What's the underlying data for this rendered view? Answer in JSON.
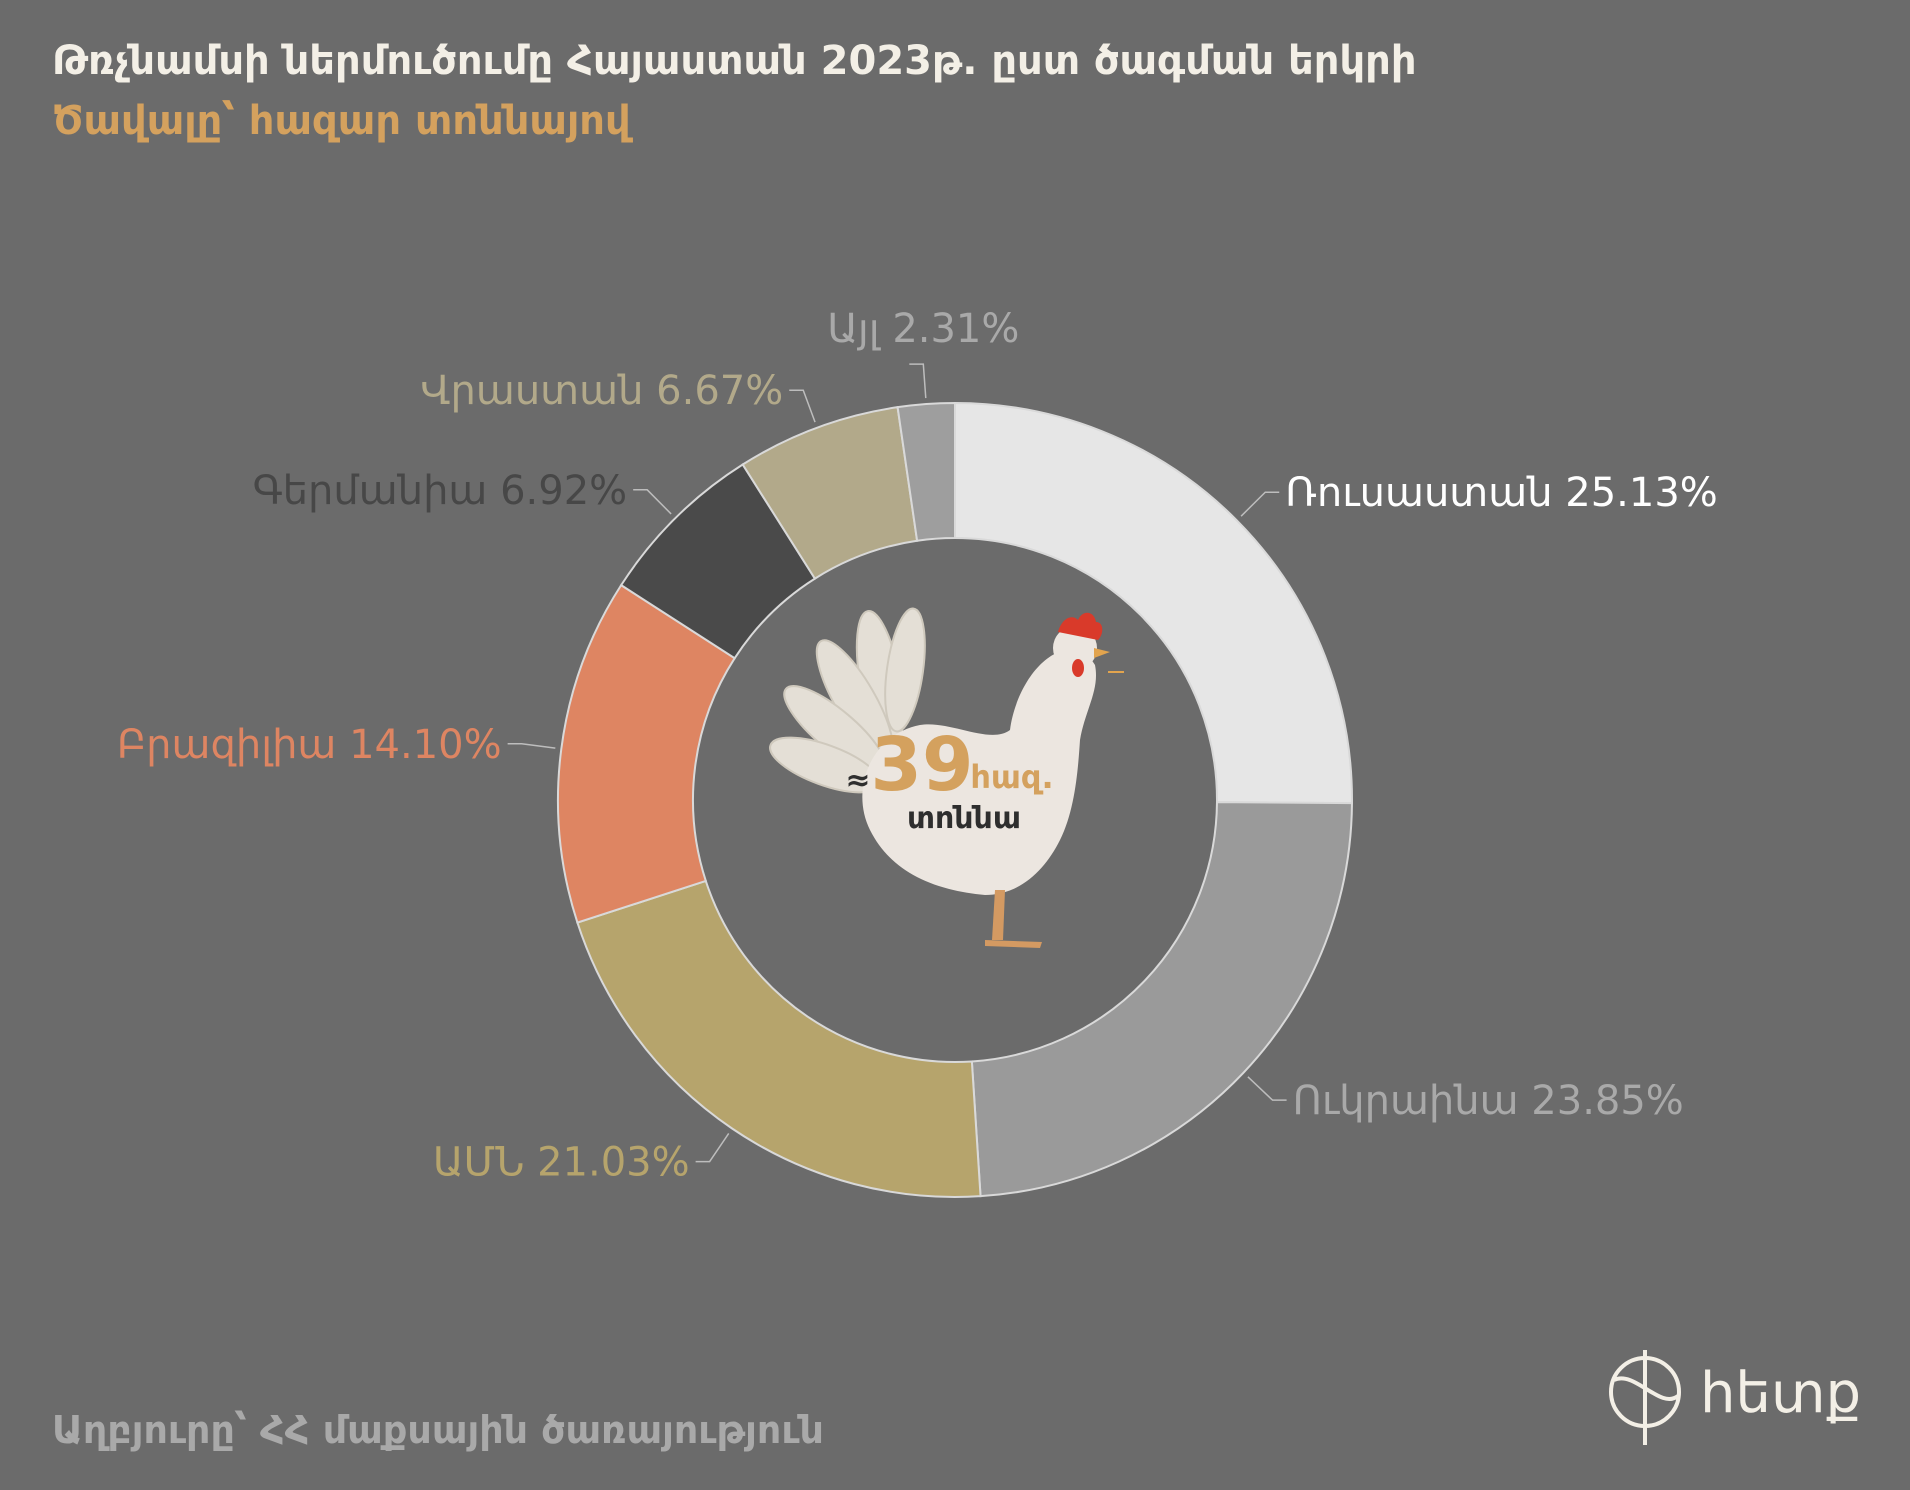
{
  "header": {
    "title": "Թռչնամսի ներմուծումը Հայաստան 2023թ. ըստ ծագման երկրի",
    "subtitle": "Ծավալը՝ հազար տոննայով"
  },
  "center": {
    "approx": "≈",
    "value": "39",
    "unit": "հազ.",
    "unit2": "տոննա"
  },
  "source": "Աղբյուրը՝  ՀՀ մաքսային ծառայություն",
  "logo": {
    "text": "hետք"
  },
  "colors": {
    "background": "#6b6b6b",
    "title": "#f3efe6",
    "subtitle": "#d4a15e",
    "center_value": "#d4a15e"
  },
  "chart_data": {
    "type": "pie",
    "donut": true,
    "categories": [
      "Ռուսաստան",
      "Ուկրաինա",
      "ԱՄՆ",
      "Բրազիլիա",
      "Գերմանիա",
      "Վրաստան",
      "Այլ"
    ],
    "values": [
      25.13,
      23.85,
      21.03,
      14.1,
      6.92,
      6.67,
      2.31
    ],
    "labels": [
      "Ռուսաստան 25.13%",
      "Ուկրաինա 23.85%",
      "ԱՄՆ 21.03%",
      "Բրազիլիա 14.10%",
      "Գերմանիա 6.92%",
      "Վրաստան 6.67%",
      "Այլ 2.31%"
    ],
    "colors": [
      "#e6e6e6",
      "#9a9a9a",
      "#b6a46c",
      "#de8562",
      "#4a4a4a",
      "#b2a98a",
      "#9e9e9e"
    ],
    "label_colors": [
      "#ffffff",
      "#a9a9a9",
      "#b6a46c",
      "#de8562",
      "#474747",
      "#b2a98a",
      "#a9a9a9"
    ]
  }
}
